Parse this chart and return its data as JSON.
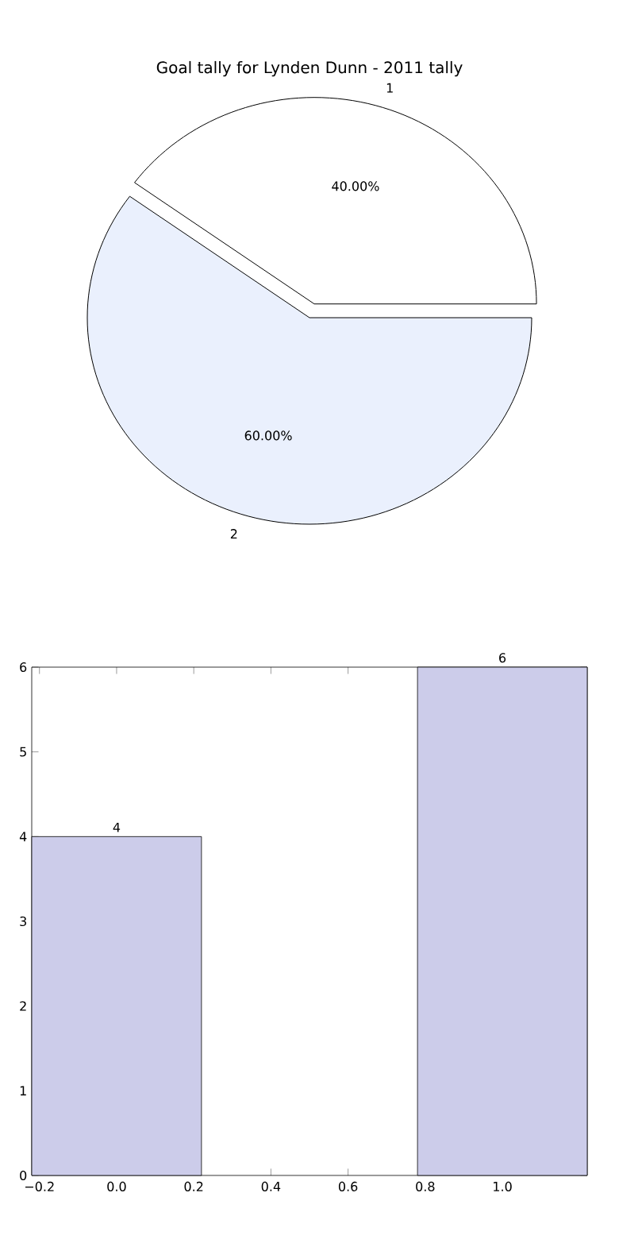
{
  "chart_data": [
    {
      "type": "pie",
      "title": "Goal tally for Lynden Dunn - 2011 tally",
      "categories": [
        "1",
        "2"
      ],
      "values": [
        40,
        60
      ],
      "colors": [
        "#ffffff",
        "#eaf0fd"
      ],
      "value_labels": [
        "40.00%",
        "60.00%"
      ]
    },
    {
      "type": "bar",
      "x": [
        0,
        1
      ],
      "values": [
        4,
        6
      ],
      "color": "#ccccea",
      "xlim": [
        -0.22,
        1.22
      ],
      "xticks": [
        {
          "value": -0.2,
          "label": "−0.2"
        },
        {
          "value": 0,
          "label": "0.0"
        },
        0.2,
        0.4,
        0.6,
        0.8,
        {
          "value": 1,
          "label": "1.0"
        }
      ],
      "ylim": [
        0,
        6
      ],
      "yticks": [
        0,
        1,
        2,
        3,
        4,
        5,
        6
      ],
      "data_labels": true
    }
  ]
}
